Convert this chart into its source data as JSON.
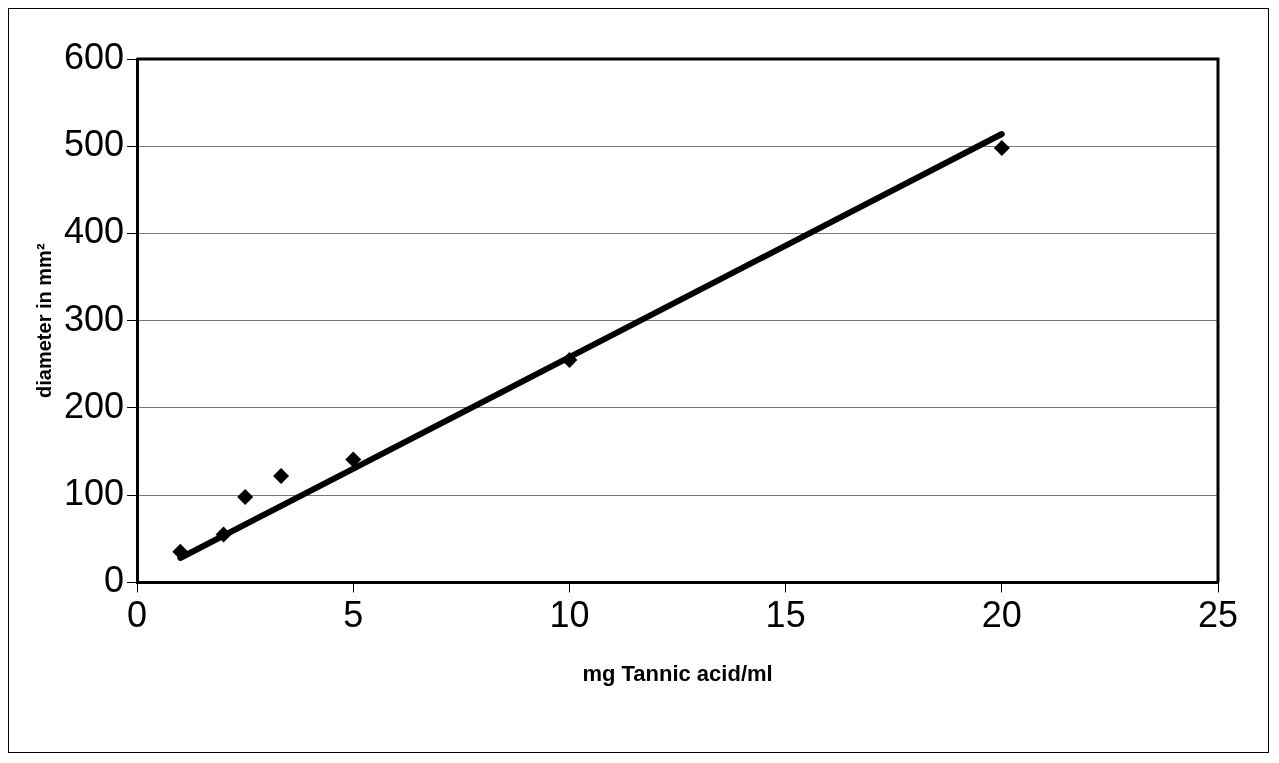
{
  "chart_data": {
    "type": "scatter",
    "xlabel": "mg Tannic acid/ml",
    "ylabel": "diameter in mm²",
    "xlim": [
      0,
      25
    ],
    "xticks": [
      0,
      5,
      10,
      15,
      20,
      25
    ],
    "ylim": [
      0,
      600
    ],
    "yticks": [
      0,
      100,
      200,
      300,
      400,
      500,
      600
    ],
    "grid": "y",
    "legend": false,
    "marker": "diamond",
    "series": [
      {
        "type": "scatter",
        "color": "#000000",
        "x": [
          1,
          2,
          2.5,
          3.33,
          5,
          10,
          20
        ],
        "values": [
          35,
          55,
          98,
          122,
          141,
          255,
          498
        ]
      },
      {
        "type": "line",
        "color": "#000000",
        "marker": "none",
        "x": [
          1,
          20
        ],
        "values": [
          28,
          514
        ]
      }
    ]
  }
}
